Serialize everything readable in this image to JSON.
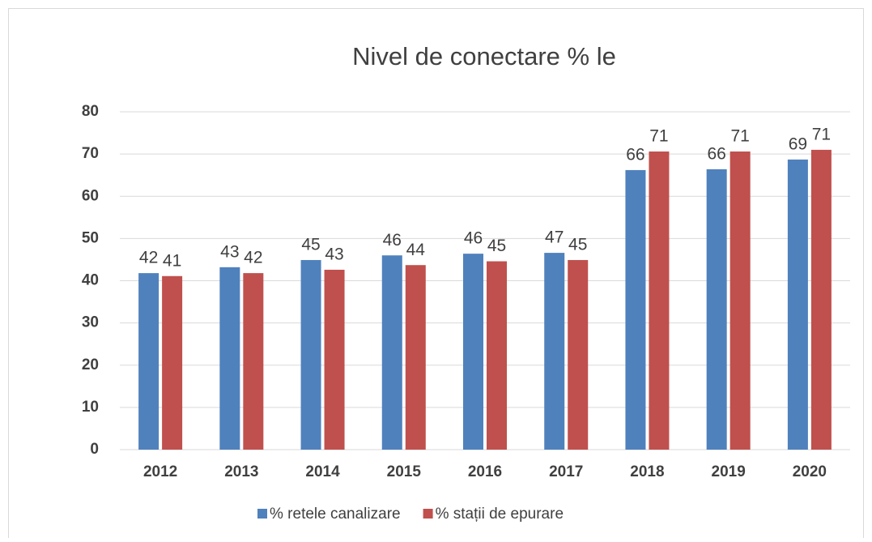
{
  "chart_data": {
    "type": "bar",
    "title": "Nivel de conectare % le",
    "categories": [
      "2012",
      "2013",
      "2014",
      "2015",
      "2016",
      "2017",
      "2018",
      "2019",
      "2020"
    ],
    "series": [
      {
        "name": "% retele canalizare",
        "color": "#4f81bd",
        "values": [
          41.8,
          43.2,
          44.9,
          46.0,
          46.4,
          46.6,
          66.2,
          66.4,
          68.7
        ],
        "value_labels": [
          "42",
          "43",
          "45",
          "46",
          "46",
          "47",
          "66",
          "66",
          "69"
        ]
      },
      {
        "name": "% stații de epurare",
        "color": "#c0504d",
        "values": [
          41.1,
          41.8,
          42.6,
          43.7,
          44.6,
          44.9,
          70.6,
          70.6,
          71.0
        ],
        "value_labels": [
          "41",
          "42",
          "43",
          "44",
          "45",
          "45",
          "71",
          "71",
          "71"
        ]
      }
    ],
    "ylim": [
      0,
      80
    ],
    "yticks": [
      0,
      10,
      20,
      30,
      40,
      50,
      60,
      70,
      80
    ],
    "grid": true,
    "legend": "bottom"
  }
}
